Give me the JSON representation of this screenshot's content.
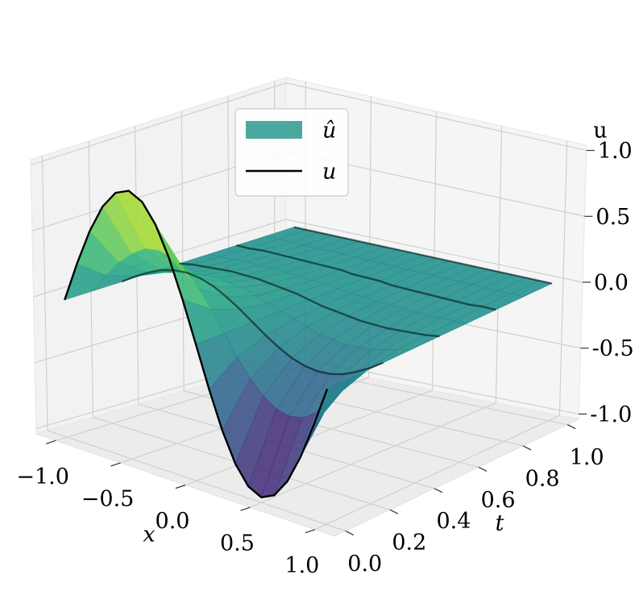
{
  "chart_data": {
    "type": "surface3d",
    "xlabel": "x",
    "ylabel": "t",
    "zlabel": "u",
    "x": [
      -1,
      -0.9,
      -0.8,
      -0.7,
      -0.6,
      -0.5,
      -0.4,
      -0.3,
      -0.2,
      -0.1,
      0,
      0.1,
      0.2,
      0.3,
      0.4,
      0.5,
      0.6,
      0.7,
      0.8,
      0.9,
      1
    ],
    "series": [
      {
        "name": "û",
        "color": "#4aa89f",
        "cmap": "viridis",
        "t": [
          0,
          0.125,
          0.25,
          0.375,
          0.5,
          0.625,
          0.75,
          0.875,
          1
        ],
        "values": [
          [
            0,
            0.31,
            0.59,
            0.81,
            0.95,
            1,
            0.95,
            0.81,
            0.59,
            0.31,
            0,
            -0.31,
            -0.59,
            -0.81,
            -0.95,
            -1,
            -0.95,
            -0.81,
            -0.59,
            -0.31,
            0
          ],
          [
            0,
            0.15,
            0.28,
            0.38,
            0.45,
            0.47,
            0.45,
            0.38,
            0.28,
            0.15,
            0,
            -0.15,
            -0.28,
            -0.38,
            -0.45,
            -0.47,
            -0.45,
            -0.38,
            -0.28,
            -0.15,
            0
          ],
          [
            0,
            0.07,
            0.13,
            0.18,
            0.21,
            0.22,
            0.21,
            0.18,
            0.13,
            0.07,
            0,
            -0.07,
            -0.13,
            -0.18,
            -0.21,
            -0.22,
            -0.21,
            -0.18,
            -0.13,
            -0.07,
            0
          ],
          [
            0,
            0.03,
            0.06,
            0.09,
            0.1,
            0.11,
            0.1,
            0.09,
            0.06,
            0.03,
            0,
            -0.03,
            -0.06,
            -0.09,
            -0.1,
            -0.11,
            -0.1,
            -0.09,
            -0.06,
            -0.03,
            0
          ],
          [
            0,
            0.02,
            0.03,
            0.04,
            0.05,
            0.05,
            0.05,
            0.04,
            0.03,
            0.02,
            0,
            -0.02,
            -0.03,
            -0.04,
            -0.05,
            -0.05,
            -0.05,
            -0.04,
            -0.03,
            -0.02,
            0
          ],
          [
            0,
            0.01,
            0.01,
            0.02,
            0.02,
            0.02,
            0.02,
            0.02,
            0.01,
            0.01,
            0,
            -0.01,
            -0.01,
            -0.02,
            -0.02,
            -0.02,
            -0.02,
            -0.02,
            -0.01,
            -0.01,
            0
          ],
          [
            0,
            0,
            0.01,
            0.01,
            0.01,
            0.01,
            0.01,
            0.01,
            0.01,
            0,
            0,
            0,
            -0.01,
            -0.01,
            -0.01,
            -0.01,
            -0.01,
            -0.01,
            -0.01,
            0,
            0
          ],
          [
            0,
            0,
            0,
            0,
            0,
            0,
            0,
            0,
            0,
            0,
            0,
            0,
            0,
            0,
            0,
            0,
            0,
            0,
            0,
            0,
            0
          ],
          [
            0,
            0,
            0,
            0,
            0,
            0,
            0,
            0,
            0,
            0,
            0,
            0,
            0,
            0,
            0,
            0,
            0,
            0,
            0,
            0,
            0
          ]
        ]
      },
      {
        "name": "u",
        "color": "#000000",
        "t": [
          0,
          0.25,
          0.5,
          0.75,
          1
        ],
        "values": [
          [
            0,
            0.31,
            0.59,
            0.81,
            0.95,
            1,
            0.95,
            0.81,
            0.59,
            0.31,
            0,
            -0.31,
            -0.59,
            -0.81,
            -0.95,
            -1,
            -0.95,
            -0.81,
            -0.59,
            -0.31,
            0
          ],
          [
            0,
            0.07,
            0.13,
            0.18,
            0.21,
            0.22,
            0.21,
            0.18,
            0.13,
            0.07,
            0,
            -0.07,
            -0.13,
            -0.18,
            -0.21,
            -0.22,
            -0.21,
            -0.18,
            -0.13,
            -0.07,
            0
          ],
          [
            0,
            0.02,
            0.03,
            0.04,
            0.05,
            0.05,
            0.05,
            0.04,
            0.03,
            0.02,
            0,
            -0.02,
            -0.03,
            -0.04,
            -0.05,
            -0.05,
            -0.05,
            -0.04,
            -0.03,
            -0.02,
            0
          ],
          [
            0,
            0,
            0.01,
            0.01,
            0.01,
            0.01,
            0.01,
            0.01,
            0.01,
            0,
            0,
            0,
            -0.01,
            -0.01,
            -0.01,
            -0.01,
            -0.01,
            -0.01,
            -0.01,
            0,
            0
          ],
          [
            0,
            0,
            0,
            0,
            0,
            0,
            0,
            0,
            0,
            0,
            0,
            0,
            0,
            0,
            0,
            0,
            0,
            0,
            0,
            0,
            0
          ]
        ]
      }
    ],
    "xlim": [
      -1.15,
      1.15
    ],
    "ylim": [
      -0.05,
      1.05
    ],
    "zlim": [
      -1.04,
      1.04
    ],
    "xticks": [
      {
        "value": -1,
        "label": "−1.0"
      },
      {
        "value": -0.5,
        "label": "−0.5"
      },
      {
        "value": 0,
        "label": "0.0"
      },
      {
        "value": 0.5,
        "label": "0.5"
      },
      {
        "value": 1,
        "label": "1.0"
      }
    ],
    "yticks": [
      {
        "value": 0,
        "label": "0.0"
      },
      {
        "value": 0.2,
        "label": "0.2"
      },
      {
        "value": 0.4,
        "label": "0.4"
      },
      {
        "value": 0.6,
        "label": "0.6"
      },
      {
        "value": 0.8,
        "label": "0.8"
      },
      {
        "value": 1,
        "label": "1.0"
      }
    ],
    "zticks": [
      {
        "value": -1,
        "label": "-1.0"
      },
      {
        "value": -0.5,
        "label": "-0.5"
      },
      {
        "value": 0,
        "label": "0.0"
      },
      {
        "value": 0.5,
        "label": "0.5"
      },
      {
        "value": 1,
        "label": "1.0"
      }
    ],
    "grid": true,
    "legend": "upper center"
  }
}
